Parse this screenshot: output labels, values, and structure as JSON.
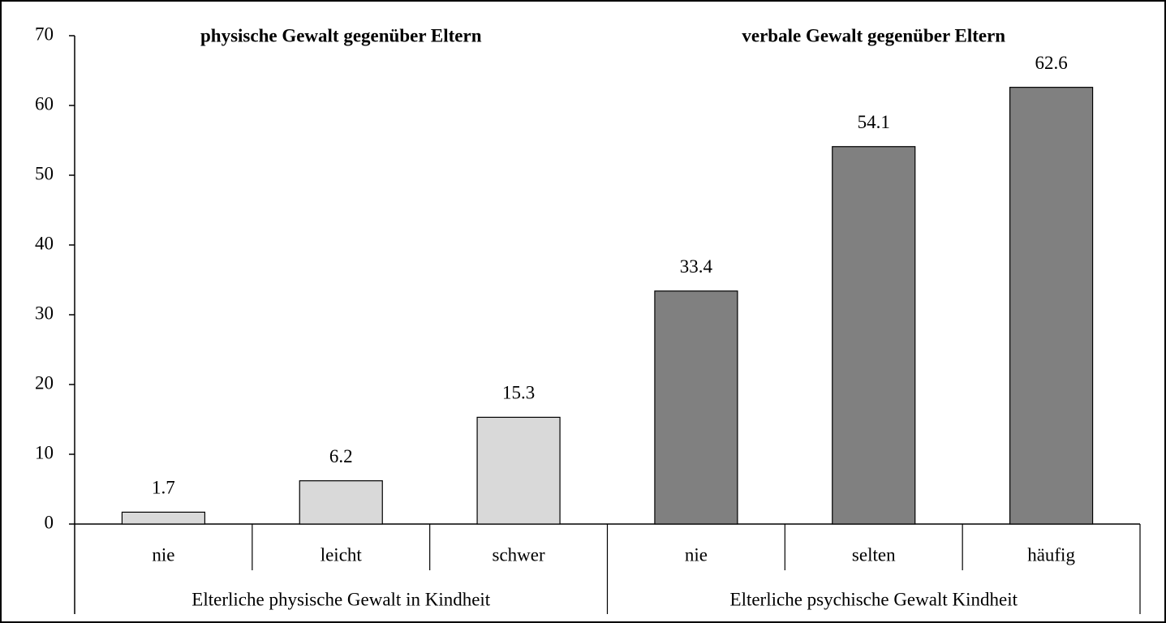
{
  "chart_data": {
    "type": "bar",
    "groups": [
      {
        "title": "physische  Gewalt gegenüber Eltern",
        "label": "Elterliche physische Gewalt in Kindheit",
        "categories": [
          "nie",
          "leicht",
          "schwer"
        ],
        "values": [
          1.7,
          6.2,
          15.3
        ],
        "color": "#d9d9d9"
      },
      {
        "title": "verbale Gewalt gegenüber Eltern",
        "label": "Elterliche psychische Gewalt Kindheit",
        "categories": [
          "nie",
          "selten",
          "häufig"
        ],
        "values": [
          33.4,
          54.1,
          62.6
        ],
        "color": "#808080"
      }
    ],
    "ylim": [
      0,
      70
    ],
    "yticks": [
      0,
      10,
      20,
      30,
      40,
      50,
      60,
      70
    ],
    "grid": false
  }
}
